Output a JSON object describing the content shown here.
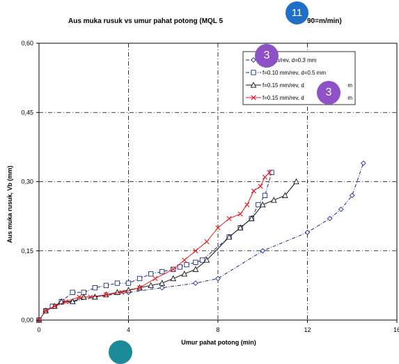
{
  "chart_data": {
    "type": "line",
    "title": "Aus muka rusuk vs umur pahat potong (MQL 5",
    "title_suffix": "90=m/min)",
    "xlabel": "Umur pahat potong (min)",
    "ylabel": "Aus muka rusuk, Vb (mm)",
    "xlim": [
      0,
      16
    ],
    "ylim": [
      0,
      0.6
    ],
    "x_ticks": [
      "0",
      "4",
      "8",
      "12",
      "16"
    ],
    "y_ticks": [
      "0,00",
      "0,15",
      "0,30",
      "0,45",
      "0,60"
    ],
    "grid": true,
    "legend_position": "top-right",
    "series": [
      {
        "name": "f=0.10 mm/rev, d=0.3 mm",
        "legend_label": "10 mm/rev, d=0.3 mm",
        "color": "#1a2a8c",
        "marker": "diamond",
        "x": [
          0,
          0.3,
          0.7,
          1.5,
          2.5,
          4,
          5.5,
          7,
          8,
          10,
          12,
          13,
          13.5,
          14,
          14.5
        ],
        "y": [
          0,
          0.02,
          0.03,
          0.04,
          0.05,
          0.06,
          0.07,
          0.08,
          0.09,
          0.15,
          0.19,
          0.22,
          0.24,
          0.27,
          0.34
        ]
      },
      {
        "name": "f=0.10 mm/rev, d=0.5 mm",
        "legend_label": "f=0.10 mm/rev, d=0.5 mm",
        "color": "#1a2a8c",
        "marker": "square",
        "x": [
          0,
          0.3,
          0.6,
          1,
          1.5,
          2,
          2.5,
          3,
          3.5,
          4,
          4.5,
          5,
          5.5,
          6,
          6.3,
          6.6,
          7,
          7.3,
          8.5,
          9,
          9.5,
          9.8,
          10.1,
          10.4
        ],
        "y": [
          0,
          0.02,
          0.03,
          0.04,
          0.06,
          0.06,
          0.07,
          0.075,
          0.08,
          0.08,
          0.09,
          0.1,
          0.105,
          0.11,
          0.115,
          0.12,
          0.125,
          0.13,
          0.18,
          0.2,
          0.22,
          0.25,
          0.27,
          0.32
        ]
      },
      {
        "name": "f=0.15 mm/rev, d=0.3 mm",
        "legend_label": "f=0.15 mm/rev, d",
        "legend_label_end": "m",
        "color": "#111111",
        "marker": "triangle",
        "x": [
          0,
          0.3,
          0.7,
          1,
          1.5,
          2,
          2.5,
          3,
          3.5,
          4,
          4.5,
          5,
          5.5,
          6,
          6.5,
          7,
          7.5,
          8.5,
          9,
          9.5,
          10,
          10.5,
          11,
          11.5
        ],
        "y": [
          0,
          0.02,
          0.03,
          0.04,
          0.04,
          0.05,
          0.05,
          0.055,
          0.06,
          0.065,
          0.07,
          0.075,
          0.08,
          0.09,
          0.1,
          0.11,
          0.13,
          0.18,
          0.2,
          0.22,
          0.25,
          0.26,
          0.27,
          0.3
        ]
      },
      {
        "name": "f=0.15 mm/rev, d=0.5 mm",
        "legend_label": "f=0.15 mm/rev, d",
        "legend_label_end": "m",
        "color": "#e8171c",
        "marker": "x",
        "x": [
          0,
          0.3,
          0.7,
          1.2,
          1.8,
          2.3,
          3,
          3.7,
          4.5,
          5.2,
          6,
          6.5,
          7,
          7.5,
          8,
          8.5,
          9,
          9.3,
          9.6,
          9.9,
          10.1,
          10.3
        ],
        "y": [
          0,
          0.02,
          0.03,
          0.04,
          0.05,
          0.05,
          0.055,
          0.06,
          0.07,
          0.09,
          0.11,
          0.13,
          0.15,
          0.17,
          0.2,
          0.22,
          0.23,
          0.25,
          0.28,
          0.29,
          0.31,
          0.32
        ]
      }
    ]
  },
  "badges": [
    {
      "text": "11",
      "color": "#1f6fc8"
    },
    {
      "text": "3",
      "color": "#8e52c6"
    },
    {
      "text": "3",
      "color": "#8e52c6"
    },
    {
      "text": "",
      "color": "#1d8a99"
    }
  ]
}
